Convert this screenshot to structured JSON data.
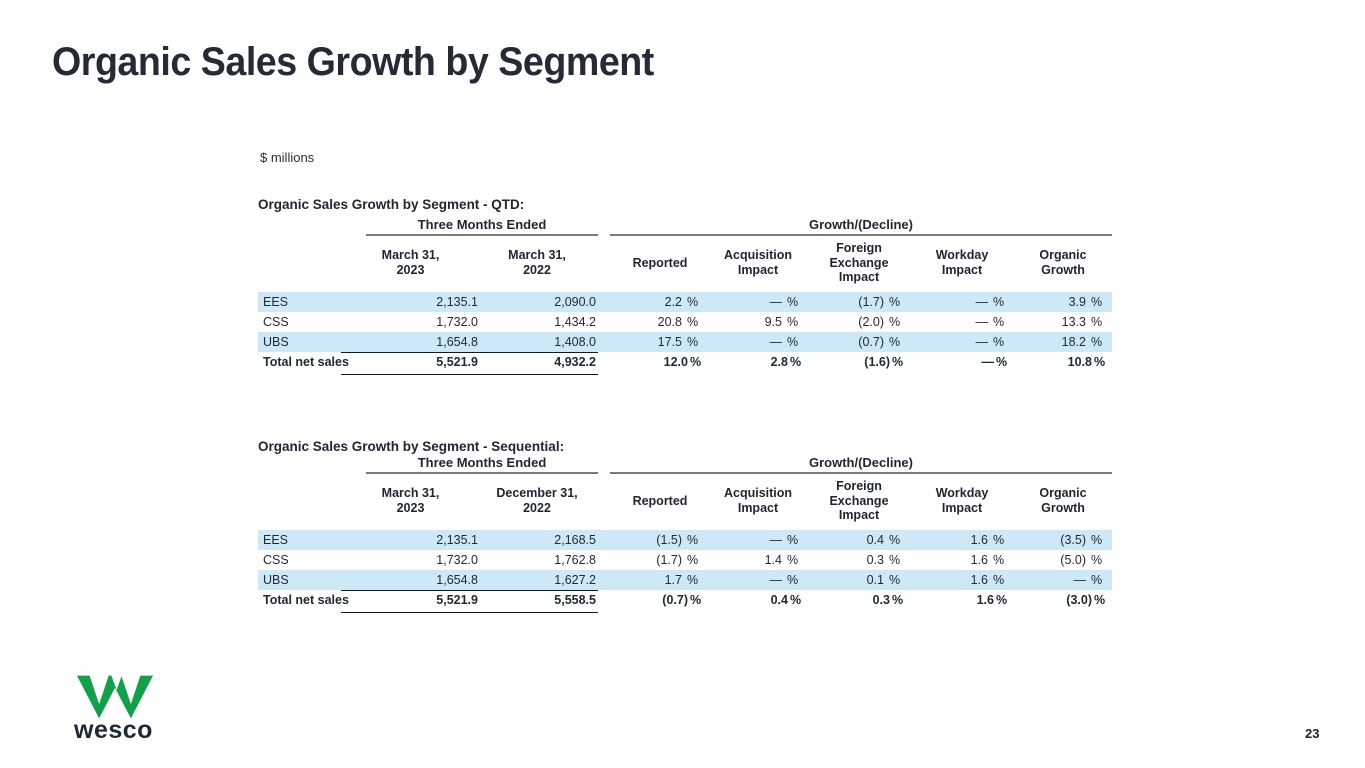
{
  "title": "Organic Sales Growth by Segment",
  "units_note": "$ millions",
  "page_number": "23",
  "percent_sign": "%",
  "logo": {
    "wordmark": "wesco"
  },
  "colors": {
    "brand_green": "#12A14B",
    "brand_navy": "#1B2A38",
    "row_band_blue": "#CDE9F7",
    "title_text": "#222B36"
  },
  "tables": [
    {
      "title": "Organic Sales Growth by Segment - QTD:",
      "group_headers": {
        "left": "Three Months Ended",
        "right": "Growth/(Decline)"
      },
      "col_headers": [
        "March 31,\n2023",
        "March 31,\n2022",
        "Reported",
        "Acquisition\nImpact",
        "Foreign\nExchange\nImpact",
        "Workday\nImpact",
        "Organic\nGrowth"
      ],
      "rows": [
        {
          "label": "EES",
          "dollars": [
            "2,135.1",
            "2,090.0"
          ],
          "pcts": [
            "2.2",
            "—",
            "(1.7)",
            "—",
            "3.9"
          ],
          "shaded": true,
          "bold": false,
          "rule": false
        },
        {
          "label": "CSS",
          "dollars": [
            "1,732.0",
            "1,434.2"
          ],
          "pcts": [
            "20.8",
            "9.5",
            "(2.0)",
            "—",
            "13.3"
          ],
          "shaded": false,
          "bold": false,
          "rule": false
        },
        {
          "label": "UBS",
          "dollars": [
            "1,654.8",
            "1,408.0"
          ],
          "pcts": [
            "17.5",
            "—",
            "(0.7)",
            "—",
            "18.2"
          ],
          "shaded": true,
          "bold": false,
          "rule": true
        },
        {
          "label": "Total net sales",
          "dollars": [
            "5,521.9",
            "4,932.2"
          ],
          "pcts": [
            "12.0",
            "2.8",
            "(1.6)",
            "—",
            "10.8"
          ],
          "shaded": false,
          "bold": true,
          "rule": true
        }
      ]
    },
    {
      "title": "Organic Sales Growth by Segment - Sequential:",
      "group_headers": {
        "left": "Three Months Ended",
        "right": "Growth/(Decline)"
      },
      "col_headers": [
        "March 31,\n2023",
        "December 31,\n2022",
        "Reported",
        "Acquisition\nImpact",
        "Foreign\nExchange\nImpact",
        "Workday\nImpact",
        "Organic\nGrowth"
      ],
      "rows": [
        {
          "label": "EES",
          "dollars": [
            "2,135.1",
            "2,168.5"
          ],
          "pcts": [
            "(1.5)",
            "—",
            "0.4",
            "1.6",
            "(3.5)"
          ],
          "shaded": true,
          "bold": false,
          "rule": false
        },
        {
          "label": "CSS",
          "dollars": [
            "1,732.0",
            "1,762.8"
          ],
          "pcts": [
            "(1.7)",
            "1.4",
            "0.3",
            "1.6",
            "(5.0)"
          ],
          "shaded": false,
          "bold": false,
          "rule": false
        },
        {
          "label": "UBS",
          "dollars": [
            "1,654.8",
            "1,627.2"
          ],
          "pcts": [
            "1.7",
            "—",
            "0.1",
            "1.6",
            "—"
          ],
          "shaded": true,
          "bold": false,
          "rule": true
        },
        {
          "label": "Total net sales",
          "dollars": [
            "5,521.9",
            "5,558.5"
          ],
          "pcts": [
            "(0.7)",
            "0.4",
            "0.3",
            "1.6",
            "(3.0)"
          ],
          "shaded": false,
          "bold": true,
          "rule": true
        }
      ]
    }
  ]
}
